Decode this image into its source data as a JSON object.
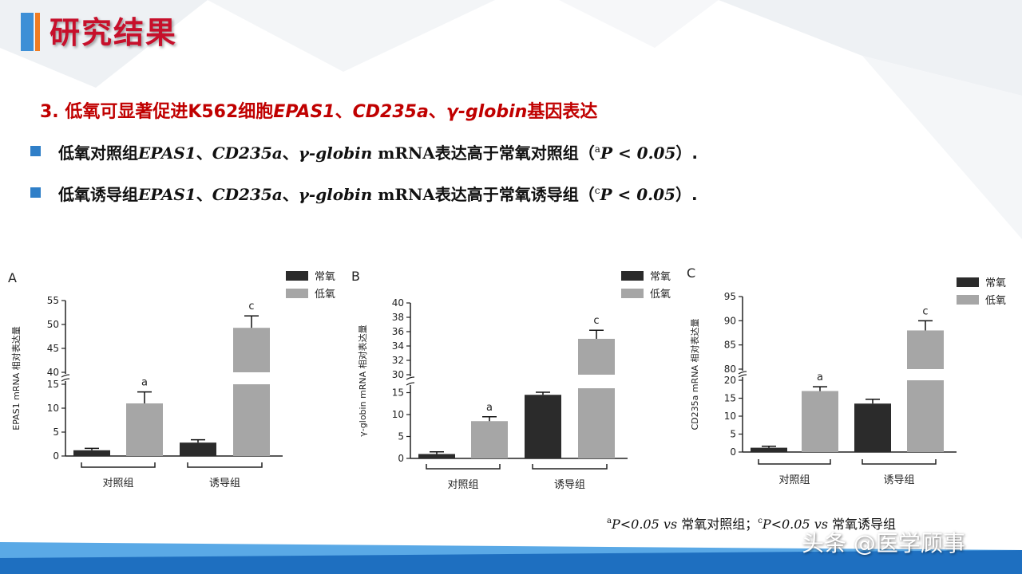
{
  "slide": {
    "title": "研究结果",
    "subtitle_prefix": "3. 低氧可显著促进K562细胞",
    "subtitle_g1": "EPAS1",
    "subtitle_sep1": "、",
    "subtitle_g2": "CD235a",
    "subtitle_sep2": "、",
    "subtitle_g3": "γ-globin",
    "subtitle_suffix": "基因表达",
    "bullet1": {
      "prefix": "低氧对照组",
      "g1": "EPAS1",
      "sep1": "、",
      "g2": "CD235a",
      "sep2": "、",
      "g3": "γ-globin",
      "mrna": " mRNA",
      "text": "表达高于常氧对照组（",
      "sup": "a",
      "p": "P < 0.05",
      "end": "）."
    },
    "bullet2": {
      "prefix": "低氧诱导组",
      "g1": "EPAS1",
      "sep1": "、",
      "g2": "CD235a",
      "sep2": "、",
      "g3": "γ-globin",
      "mrna": " mRNA",
      "text": "表达高于常氧诱导组（",
      "sup": "c",
      "p": "P < 0.05",
      "end": "）."
    },
    "footnote": {
      "sup_a": "a",
      "part1": "P<0.05 ",
      "vs1": "vs",
      "part2": " 常氧对照组；",
      "sup_c": "c",
      "part3": "P<0.05 ",
      "vs2": "vs",
      "part4": " 常氧诱导组"
    },
    "watermark": "头条 @医学顾事"
  },
  "colors": {
    "title_red": "#c7102b",
    "subtitle_red": "#c00000",
    "bullet_blue": "#2f7fc8",
    "normoxia": "#2b2b2b",
    "hypoxia": "#a6a6a6"
  },
  "chart_data": [
    {
      "panel": "A",
      "type": "bar",
      "ylabel": "EPAS1 mRNA 相对表达量",
      "groups": [
        "对照组",
        "诱导组"
      ],
      "legend": [
        "常氧",
        "低氧"
      ],
      "axis_break": {
        "lower": [
          0,
          15
        ],
        "upper": [
          40,
          55
        ]
      },
      "lower_ticks": [
        0,
        5,
        10,
        15
      ],
      "upper_ticks": [
        40,
        45,
        50,
        55
      ],
      "series": [
        {
          "name": "常氧",
          "values": [
            1.2,
            2.8
          ],
          "errors": [
            0.4,
            0.6
          ]
        },
        {
          "name": "低氧",
          "values": [
            11.0,
            49.3
          ],
          "errors": [
            2.4,
            2.5
          ]
        }
      ],
      "labels": [
        {
          "series": 1,
          "group": 0,
          "text": "a"
        },
        {
          "series": 1,
          "group": 1,
          "text": "c"
        }
      ]
    },
    {
      "panel": "B",
      "type": "bar",
      "ylabel": "γ-globin mRNA 相对表达量",
      "groups": [
        "对照组",
        "诱导组"
      ],
      "legend": [
        "常氧",
        "低氧"
      ],
      "axis_break": {
        "lower": [
          0,
          16
        ],
        "upper": [
          30,
          40
        ]
      },
      "lower_ticks": [
        0,
        5,
        10,
        15
      ],
      "upper_ticks": [
        30,
        32,
        34,
        36,
        38,
        40
      ],
      "series": [
        {
          "name": "常氧",
          "values": [
            1.0,
            14.5
          ],
          "errors": [
            0.5,
            0.6
          ]
        },
        {
          "name": "低氧",
          "values": [
            8.5,
            35.0
          ],
          "errors": [
            1.0,
            1.2
          ]
        }
      ],
      "labels": [
        {
          "series": 1,
          "group": 0,
          "text": "a"
        },
        {
          "series": 1,
          "group": 1,
          "text": "c"
        }
      ]
    },
    {
      "panel": "C",
      "type": "bar",
      "ylabel": "CD235a mRNA 相对表达量",
      "groups": [
        "对照组",
        "诱导组"
      ],
      "legend": [
        "常氧",
        "低氧"
      ],
      "axis_break": {
        "lower": [
          0,
          20
        ],
        "upper": [
          80,
          95
        ]
      },
      "lower_ticks": [
        0,
        5,
        10,
        15,
        20
      ],
      "upper_ticks": [
        80,
        85,
        90,
        95
      ],
      "series": [
        {
          "name": "常氧",
          "values": [
            1.2,
            13.5
          ],
          "errors": [
            0.4,
            1.2
          ]
        },
        {
          "name": "低氧",
          "values": [
            17.0,
            88.0
          ],
          "errors": [
            1.2,
            2.0
          ]
        }
      ],
      "labels": [
        {
          "series": 1,
          "group": 0,
          "text": "a"
        },
        {
          "series": 1,
          "group": 1,
          "text": "c"
        }
      ]
    }
  ]
}
